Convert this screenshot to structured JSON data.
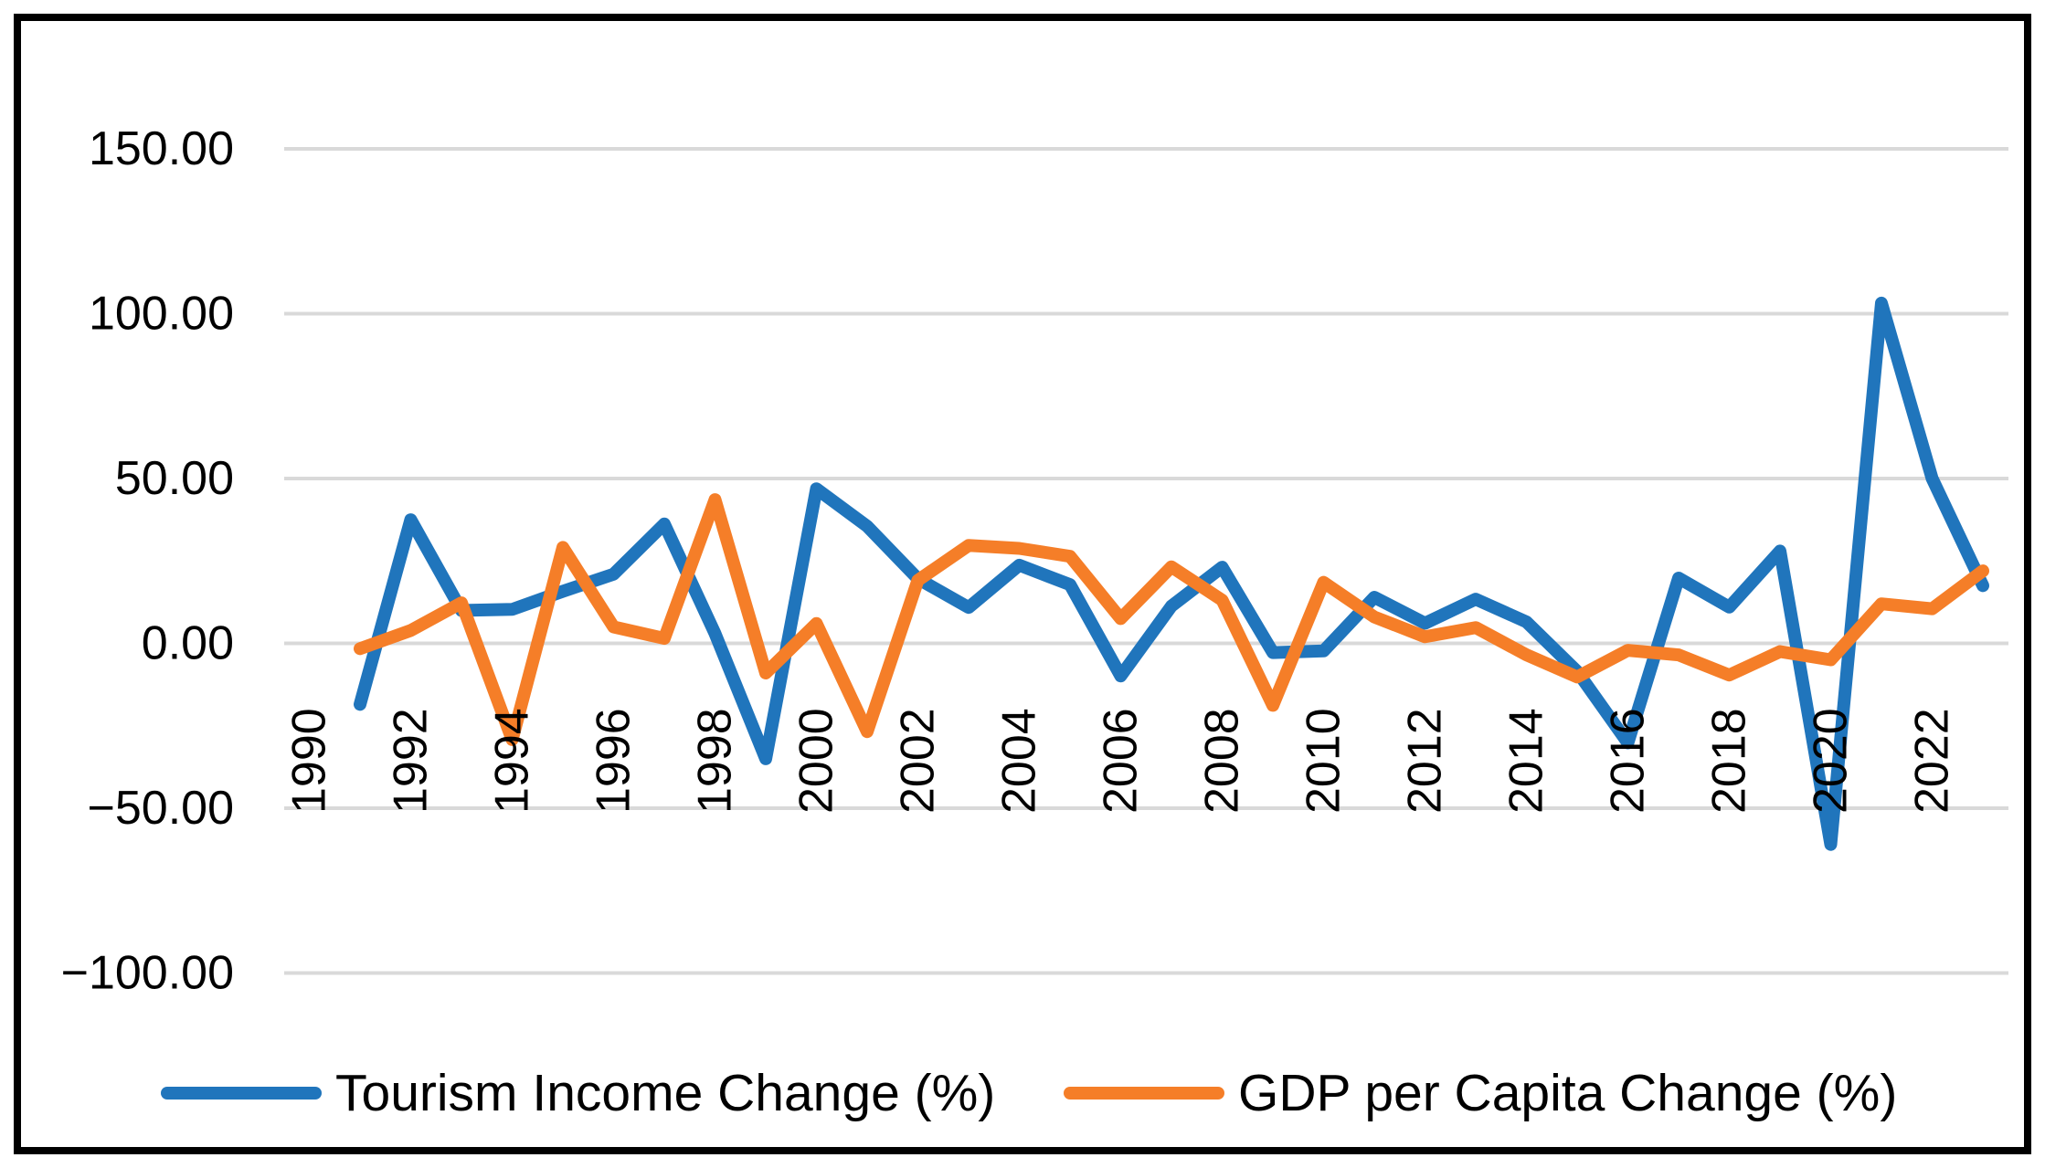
{
  "chart_data": {
    "type": "line",
    "title": "",
    "xlabel": "",
    "ylabel": "",
    "grid": true,
    "legend_position": "bottom",
    "ylim": [
      -100,
      150
    ],
    "x": [
      1991,
      1992,
      1993,
      1994,
      1995,
      1996,
      1997,
      1998,
      1999,
      2000,
      2001,
      2002,
      2003,
      2004,
      2005,
      2006,
      2007,
      2008,
      2009,
      2010,
      2011,
      2012,
      2013,
      2014,
      2015,
      2016,
      2017,
      2018,
      2019,
      2020,
      2021,
      2022,
      2023
    ],
    "series": [
      {
        "name": "Tourism Income Change (%)",
        "color": "#2075BC",
        "values": [
          -18.5,
          37.5,
          10.0,
          10.3,
          15.8,
          21.0,
          36.2,
          3.0,
          -35.0,
          46.9,
          35.5,
          19.6,
          10.9,
          23.7,
          17.8,
          -9.9,
          11.3,
          23.1,
          -2.8,
          -2.3,
          14.0,
          6.1,
          13.4,
          6.5,
          -8.5,
          -30.2,
          19.8,
          11.0,
          28.0,
          -61.0,
          103.2,
          50.0,
          17.5
        ]
      },
      {
        "name": "GDP per Capita Change (%)",
        "color": "#F57E28",
        "values": [
          -1.6,
          3.9,
          12.3,
          -29.2,
          29.1,
          5.0,
          1.5,
          43.6,
          -9.0,
          6.0,
          -26.8,
          19.1,
          29.7,
          28.8,
          26.4,
          7.5,
          23.2,
          13.1,
          -18.8,
          18.5,
          8.0,
          2.0,
          4.8,
          -3.5,
          -10.2,
          -2.1,
          -3.5,
          -9.6,
          -2.5,
          -5.0,
          12.0,
          10.5,
          22.0
        ]
      }
    ],
    "x_ticks": [
      "1990",
      "1992",
      "1994",
      "1996",
      "1998",
      "2000",
      "2002",
      "2004",
      "2006",
      "2008",
      "2010",
      "2012",
      "2014",
      "2016",
      "2018",
      "2020",
      "2022"
    ],
    "y_ticks": [
      {
        "label": "150.00",
        "value": 150
      },
      {
        "label": "100.00",
        "value": 100
      },
      {
        "label": "50.00",
        "value": 50
      },
      {
        "label": "0.00",
        "value": 0
      },
      {
        "label": "−50.00",
        "value": -50
      },
      {
        "label": "−100.00",
        "value": -100
      }
    ],
    "gridline_color": "#D9D9D9",
    "tick_label_color": "#000000"
  }
}
